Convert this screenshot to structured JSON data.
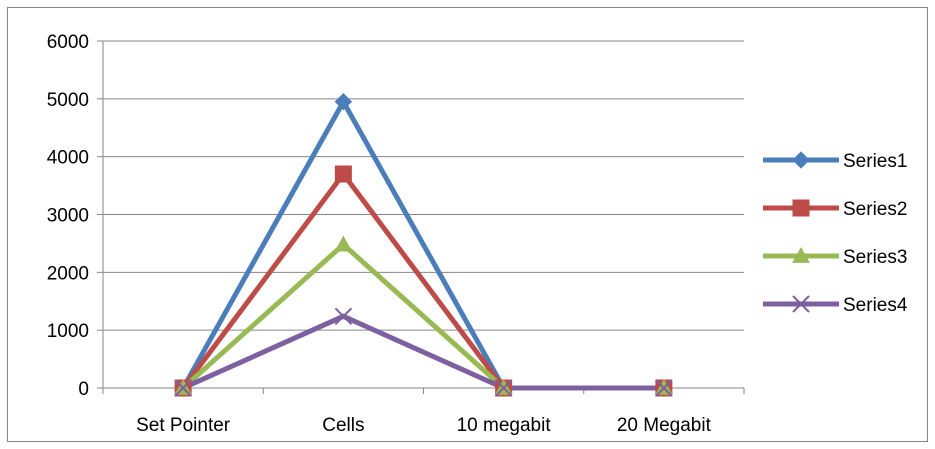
{
  "chart_data": {
    "type": "line",
    "title": "",
    "xlabel": "",
    "ylabel": "",
    "categories": [
      "Set Pointer",
      "Cells",
      "10 megabit",
      "20 Megabit"
    ],
    "ylim": [
      0,
      6000
    ],
    "yticks": [
      0,
      1000,
      2000,
      3000,
      4000,
      5000,
      6000
    ],
    "grid": "horizontal",
    "legend_position": "right",
    "series": [
      {
        "name": "Series1",
        "values": [
          0,
          4950,
          0,
          0
        ],
        "color": "#4A7EBB",
        "marker": "diamond"
      },
      {
        "name": "Series2",
        "values": [
          0,
          3700,
          0,
          0
        ],
        "color": "#BE4B48",
        "marker": "square"
      },
      {
        "name": "Series3",
        "values": [
          0,
          2480,
          0,
          0
        ],
        "color": "#98B954",
        "marker": "triangle"
      },
      {
        "name": "Series4",
        "values": [
          0,
          1240,
          0,
          0
        ],
        "color": "#7D60A0",
        "marker": "x"
      }
    ]
  }
}
